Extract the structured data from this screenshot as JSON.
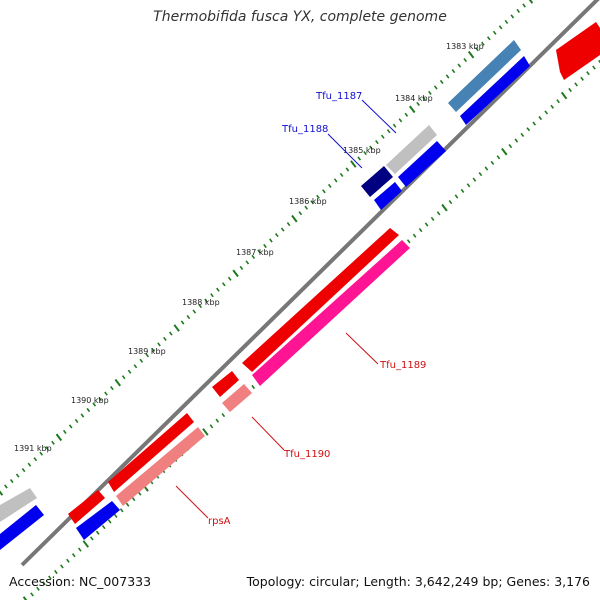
{
  "title": "Thermobifida fusca YX, complete genome",
  "footer": {
    "accession": "Accession: NC_007333",
    "topology": "Topology: circular; Length: 3,642,249 bp; Genes: 3,176"
  },
  "ticks": [
    "1383 kbp",
    "1384 kbp",
    "1385 kbp",
    "1386 kbp",
    "1387 kbp",
    "1388 kbp",
    "1389 kbp",
    "1390 kbp",
    "1391 kbp"
  ],
  "gene_labels": {
    "tfu_1187": "Tfu_1187",
    "tfu_1188": "Tfu_1188",
    "tfu_1189": "Tfu_1189",
    "tfu_1190": "Tfu_1190",
    "rpsA": "rpsA"
  },
  "colors": {
    "backbone": "#777777",
    "tick_dot": "#1f7a1f",
    "label_blue": "#1010d0",
    "label_red": "#cc1010",
    "gene_red": "#ee0000",
    "gene_pink": "#ff1493",
    "gene_salmon": "#f08080",
    "gene_blue": "#0000ee",
    "gene_steel": "#4682b4",
    "gene_navy": "#000080",
    "gene_gray": "#c0c0c0"
  }
}
